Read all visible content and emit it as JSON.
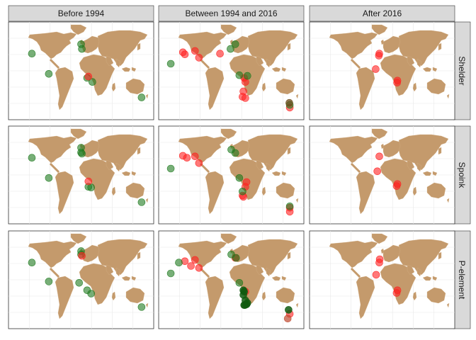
{
  "chart_data": {
    "type": "scatter",
    "subtype": "faceted-map",
    "col_facets": [
      "Before 1994",
      "Between 1994 and 2016",
      "After 2016"
    ],
    "row_facets": [
      "Shelder",
      "Spoink",
      "P-element"
    ],
    "xlabel": "",
    "ylabel": "",
    "xlim": [
      -180,
      180
    ],
    "ylim": [
      -60,
      85
    ],
    "grid": true,
    "legend": "none",
    "colors": {
      "land": "#C49A6C",
      "green_point": "#1E7A1E",
      "dark_green_point": "#0F5A0F",
      "red_point": "#FF2020",
      "strip_bg": "#D9D9D9",
      "grid": "#E8E8E8"
    },
    "points": [
      {
        "facet": [
          0,
          0
        ],
        "color": "green",
        "lonlat": [
          [
            -122,
            38
          ],
          [
            -80,
            8
          ],
          [
            0,
            52
          ],
          [
            2,
            45
          ],
          [
            28,
            -4
          ],
          [
            15,
            2
          ],
          [
            150,
            -27
          ]
        ]
      },
      {
        "facet": [
          0,
          0
        ],
        "color": "red",
        "lonlat": [
          [
            18,
            4
          ]
        ]
      },
      {
        "facet": [
          1,
          0
        ],
        "color": "red",
        "lonlat": [
          [
            -120,
            40
          ],
          [
            -115,
            37
          ],
          [
            -90,
            42
          ],
          [
            -80,
            32
          ],
          [
            -28,
            38
          ],
          [
            32,
            2
          ],
          [
            35,
            -4
          ],
          [
            30,
            -18
          ],
          [
            28,
            -26
          ],
          [
            35,
            -28
          ],
          [
            145,
            -42
          ]
        ]
      },
      {
        "facet": [
          1,
          0
        ],
        "color": "green",
        "lonlat": [
          [
            -150,
            23
          ],
          [
            -2,
            45
          ],
          [
            10,
            52
          ],
          [
            20,
            6
          ],
          [
            40,
            5
          ],
          [
            145,
            -38
          ]
        ]
      },
      {
        "facet": [
          1,
          0
        ],
        "color": "olive",
        "lonlat": [
          [
            144,
            -35
          ]
        ]
      },
      {
        "facet": [
          2,
          0
        ],
        "color": "red",
        "lonlat": [
          [
            -7,
            38
          ],
          [
            -8,
            35
          ],
          [
            -16,
            15
          ],
          [
            38,
            -2
          ],
          [
            37,
            -5
          ]
        ]
      },
      {
        "facet": [
          0,
          1
        ],
        "color": "green",
        "lonlat": [
          [
            -122,
            38
          ],
          [
            -80,
            8
          ],
          [
            0,
            53
          ],
          [
            0,
            46
          ],
          [
            2,
            44
          ],
          [
            18,
            -5
          ],
          [
            25,
            -6
          ],
          [
            150,
            -28
          ]
        ]
      },
      {
        "facet": [
          0,
          1
        ],
        "color": "red",
        "lonlat": [
          [
            18,
            3
          ]
        ]
      },
      {
        "facet": [
          1,
          1
        ],
        "color": "red",
        "lonlat": [
          [
            -120,
            41
          ],
          [
            -110,
            38
          ],
          [
            -90,
            40
          ],
          [
            -80,
            30
          ],
          [
            38,
            2
          ],
          [
            35,
            -5
          ],
          [
            28,
            -18
          ],
          [
            30,
            -20
          ],
          [
            145,
            -36
          ],
          [
            145,
            -42
          ]
        ]
      },
      {
        "facet": [
          1,
          1
        ],
        "color": "green",
        "lonlat": [
          [
            -150,
            22
          ],
          [
            0,
            50
          ],
          [
            10,
            45
          ],
          [
            20,
            8
          ],
          [
            28,
            -12
          ],
          [
            145,
            -34
          ]
        ]
      },
      {
        "facet": [
          2,
          1
        ],
        "color": "red",
        "lonlat": [
          [
            -7,
            40
          ],
          [
            -12,
            18
          ],
          [
            38,
            -1
          ],
          [
            36,
            -4
          ]
        ]
      },
      {
        "facet": [
          0,
          2
        ],
        "color": "green",
        "lonlat": [
          [
            -122,
            38
          ],
          [
            -80,
            10
          ],
          [
            0,
            55
          ],
          [
            0,
            50
          ],
          [
            -5,
            8
          ],
          [
            15,
            -3
          ],
          [
            25,
            -8
          ],
          [
            150,
            -28
          ]
        ]
      },
      {
        "facet": [
          0,
          2
        ],
        "color": "red",
        "lonlat": [
          [
            2,
            48
          ]
        ]
      },
      {
        "facet": [
          1,
          2
        ],
        "color": "red",
        "lonlat": [
          [
            -115,
            40
          ],
          [
            -90,
            42
          ],
          [
            -100,
            33
          ],
          [
            -80,
            30
          ],
          [
            10,
            45
          ],
          [
            35,
            -5
          ],
          [
            145,
            -38
          ]
        ]
      },
      {
        "facet": [
          1,
          2
        ],
        "color": "green",
        "lonlat": [
          [
            -150,
            22
          ],
          [
            -130,
            38
          ],
          [
            0,
            50
          ],
          [
            12,
            45
          ],
          [
            20,
            8
          ]
        ]
      },
      {
        "facet": [
          1,
          2
        ],
        "color": "dark_green",
        "lonlat": [
          [
            30,
            -3
          ],
          [
            32,
            -5
          ],
          [
            30,
            -10
          ],
          [
            35,
            -18
          ],
          [
            40,
            -22
          ],
          [
            38,
            -24
          ],
          [
            34,
            -25
          ],
          [
            32,
            -25
          ],
          [
            142,
            -32
          ]
        ]
      },
      {
        "facet": [
          1,
          2
        ],
        "color": "mix",
        "lonlat": [
          [
            140,
            -45
          ]
        ]
      },
      {
        "facet": [
          2,
          2
        ],
        "color": "red",
        "lonlat": [
          [
            -6,
            43
          ],
          [
            -7,
            38
          ],
          [
            -15,
            20
          ],
          [
            38,
            -3
          ],
          [
            36,
            -7
          ]
        ]
      }
    ]
  }
}
